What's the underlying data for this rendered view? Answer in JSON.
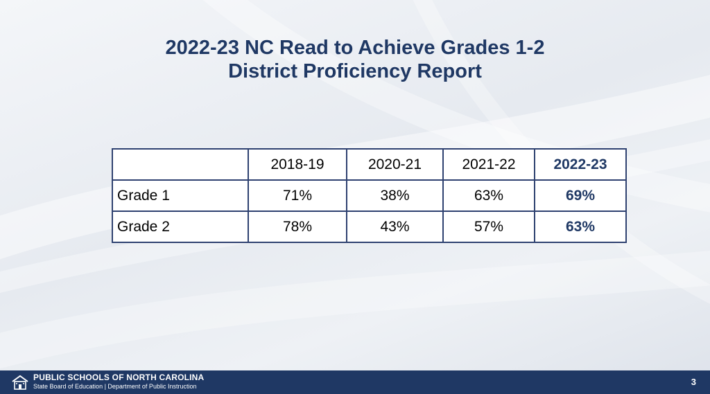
{
  "title": {
    "line1": "2022-23 NC Read to Achieve Grades 1-2",
    "line2": "District Proficiency Report"
  },
  "table": {
    "headers": [
      "",
      "2018-19",
      "2020-21",
      "2021-22",
      "2022-23"
    ],
    "rows": [
      {
        "label": "Grade 1",
        "values": [
          "71%",
          "38%",
          "63%",
          "69%"
        ]
      },
      {
        "label": "Grade 2",
        "values": [
          "78%",
          "43%",
          "57%",
          "63%"
        ]
      }
    ]
  },
  "footer": {
    "org_name": "PUBLIC SCHOOLS OF NORTH CAROLINA",
    "org_sub": "State Board of Education | Department of Public Instruction",
    "page_number": "3",
    "logo_icon": "schoolhouse-icon"
  },
  "colors": {
    "navy": "#1f3864",
    "table_border": "#2e4170"
  }
}
